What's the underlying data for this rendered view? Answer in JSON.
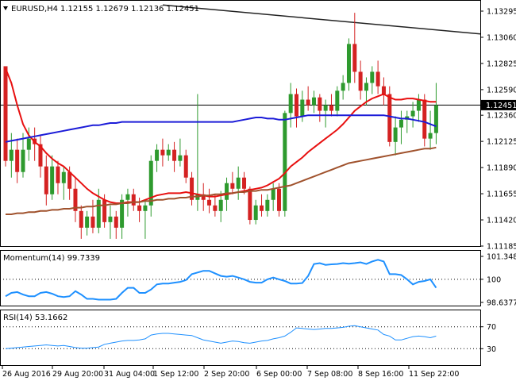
{
  "header": {
    "symbol": "EURUSD,H4",
    "ohlc": "1.12155 1.12679 1.12136 1.12451"
  },
  "colors": {
    "bull": "#2e9a2e",
    "bear": "#d42222",
    "sma_fast": "#e81010",
    "sma_mid": "#1c1cd8",
    "sma_slow": "#a0522d",
    "trendline": "#222222",
    "indicator": "#1e90ff",
    "price_line": "#000000",
    "grid": "#000000"
  },
  "chart_data": [
    {
      "type": "candlestick",
      "title": "EURUSD,H4",
      "ohlc_label": "1.12155 1.12679 1.12136 1.12451",
      "y_ticks": [
        "1.13295",
        "1.13060",
        "1.12825",
        "1.12590",
        "1.12360",
        "1.12125",
        "1.11890",
        "1.11655",
        "1.11420",
        "1.11185"
      ],
      "current_price_label": "1.12451",
      "current_price": 1.12451,
      "ylim": [
        1.11185,
        1.13295
      ],
      "x_ticks": [
        "26 Aug 2016",
        "29 Aug 20:00",
        "31 Aug 04:00",
        "1 Sep 12:00",
        "2 Sep 20:00",
        "6 Sep 00:00",
        "7 Sep 08:00",
        "8 Sep 16:00",
        "11 Sep 22:00"
      ],
      "candles": [
        [
          1.128,
          1.128,
          1.119,
          1.1195
        ],
        [
          1.1195,
          1.122,
          1.118,
          1.1205
        ],
        [
          1.1205,
          1.1215,
          1.1175,
          1.1185
        ],
        [
          1.1185,
          1.122,
          1.118,
          1.1205
        ],
        [
          1.1205,
          1.1225,
          1.1195,
          1.1215
        ],
        [
          1.1215,
          1.1225,
          1.1195,
          1.121
        ],
        [
          1.121,
          1.1218,
          1.118,
          1.119
        ],
        [
          1.119,
          1.12,
          1.1155,
          1.1165
        ],
        [
          1.1165,
          1.12,
          1.116,
          1.119
        ],
        [
          1.119,
          1.1195,
          1.1165,
          1.1175
        ],
        [
          1.1175,
          1.119,
          1.116,
          1.1185
        ],
        [
          1.1185,
          1.119,
          1.116,
          1.117
        ],
        [
          1.117,
          1.118,
          1.114,
          1.115
        ],
        [
          1.115,
          1.1155,
          1.1125,
          1.1135
        ],
        [
          1.1135,
          1.115,
          1.1128,
          1.1145
        ],
        [
          1.1145,
          1.116,
          1.113,
          1.1135
        ],
        [
          1.1135,
          1.117,
          1.113,
          1.116
        ],
        [
          1.116,
          1.1165,
          1.1135,
          1.114
        ],
        [
          1.114,
          1.1155,
          1.1125,
          1.1145
        ],
        [
          1.1145,
          1.115,
          1.1125,
          1.1135
        ],
        [
          1.1135,
          1.1165,
          1.1125,
          1.116
        ],
        [
          1.116,
          1.117,
          1.1145,
          1.1165
        ],
        [
          1.1165,
          1.117,
          1.115,
          1.1155
        ],
        [
          1.1155,
          1.1162,
          1.114,
          1.115
        ],
        [
          1.115,
          1.116,
          1.1125,
          1.1155
        ],
        [
          1.1155,
          1.12,
          1.1145,
          1.1195
        ],
        [
          1.1195,
          1.121,
          1.1185,
          1.1205
        ],
        [
          1.1205,
          1.1215,
          1.119,
          1.12
        ],
        [
          1.12,
          1.121,
          1.1195,
          1.1205
        ],
        [
          1.1205,
          1.1212,
          1.1185,
          1.1195
        ],
        [
          1.1195,
          1.1215,
          1.119,
          1.12
        ],
        [
          1.12,
          1.1205,
          1.1175,
          1.118
        ],
        [
          1.118,
          1.1185,
          1.1155,
          1.116
        ],
        [
          1.116,
          1.1255,
          1.115,
          1.1165
        ],
        [
          1.1165,
          1.1175,
          1.115,
          1.116
        ],
        [
          1.116,
          1.117,
          1.1148,
          1.1155
        ],
        [
          1.1155,
          1.1165,
          1.1145,
          1.115
        ],
        [
          1.115,
          1.1168,
          1.114,
          1.116
        ],
        [
          1.116,
          1.118,
          1.115,
          1.1175
        ],
        [
          1.1175,
          1.1185,
          1.1165,
          1.117
        ],
        [
          1.117,
          1.119,
          1.116,
          1.118
        ],
        [
          1.118,
          1.1185,
          1.1165,
          1.117
        ],
        [
          1.117,
          1.1172,
          1.1138,
          1.1142
        ],
        [
          1.1142,
          1.116,
          1.1138,
          1.1155
        ],
        [
          1.1155,
          1.1165,
          1.1145,
          1.115
        ],
        [
          1.115,
          1.1165,
          1.1145,
          1.116
        ],
        [
          1.116,
          1.1175,
          1.115,
          1.117
        ],
        [
          1.117,
          1.1175,
          1.1145,
          1.115
        ],
        [
          1.115,
          1.124,
          1.1145,
          1.1238
        ],
        [
          1.1238,
          1.1265,
          1.1225,
          1.1255
        ],
        [
          1.1255,
          1.126,
          1.1225,
          1.1235
        ],
        [
          1.1235,
          1.1258,
          1.123,
          1.125
        ],
        [
          1.125,
          1.1262,
          1.124,
          1.1245
        ],
        [
          1.1245,
          1.1258,
          1.1238,
          1.1252
        ],
        [
          1.1252,
          1.1255,
          1.123,
          1.124
        ],
        [
          1.124,
          1.125,
          1.1225,
          1.1245
        ],
        [
          1.1245,
          1.1255,
          1.1235,
          1.124
        ],
        [
          1.124,
          1.1262,
          1.1235,
          1.1258
        ],
        [
          1.1258,
          1.1272,
          1.125,
          1.1265
        ],
        [
          1.1265,
          1.1305,
          1.1258,
          1.13
        ],
        [
          1.13,
          1.1328,
          1.1265,
          1.1275
        ],
        [
          1.1275,
          1.1285,
          1.125,
          1.1258
        ],
        [
          1.1258,
          1.127,
          1.1245,
          1.1265
        ],
        [
          1.1265,
          1.128,
          1.1255,
          1.1275
        ],
        [
          1.1275,
          1.1285,
          1.1255,
          1.1262
        ],
        [
          1.1262,
          1.127,
          1.1245,
          1.1255
        ],
        [
          1.1255,
          1.1262,
          1.1208,
          1.1212
        ],
        [
          1.1212,
          1.1235,
          1.12,
          1.1225
        ],
        [
          1.1225,
          1.124,
          1.121,
          1.1232
        ],
        [
          1.1232,
          1.124,
          1.122,
          1.1235
        ],
        [
          1.1235,
          1.1248,
          1.1225,
          1.124
        ],
        [
          1.124,
          1.1255,
          1.123,
          1.125
        ],
        [
          1.125,
          1.1255,
          1.1208,
          1.1215
        ],
        [
          1.1215,
          1.124,
          1.1205,
          1.122
        ],
        [
          1.122,
          1.1265,
          1.121,
          1.1245
        ]
      ],
      "series": [
        {
          "values": [
            1.1278,
            1.1265,
            1.1245,
            1.1228,
            1.1218,
            1.1212,
            1.1208,
            1.1202,
            1.1197,
            1.1193,
            1.119,
            1.1185,
            1.118,
            1.1175,
            1.117,
            1.1166,
            1.1163,
            1.116,
            1.1158,
            1.1157,
            1.1157,
            1.1158,
            1.1158,
            1.1158,
            1.116,
            1.1162,
            1.1164,
            1.1165,
            1.1166,
            1.1166,
            1.1166,
            1.1167,
            1.1166,
            1.1165,
            1.1164,
            1.1163,
            1.1163,
            1.1164,
            1.1165,
            1.1166,
            1.1167,
            1.1168,
            1.1169,
            1.117,
            1.1171,
            1.1173,
            1.1176,
            1.1179,
            1.1184,
            1.119,
            1.1194,
            1.1198,
            1.1203,
            1.1207,
            1.1211,
            1.1215,
            1.1219,
            1.1223,
            1.1228,
            1.1234,
            1.124,
            1.1244,
            1.1248,
            1.1251,
            1.1253,
            1.1255,
            1.1252,
            1.125,
            1.125,
            1.1251,
            1.1251,
            1.125,
            1.1249,
            1.1248,
            1.1248
          ]
        },
        {
          "values": [
            1.1212,
            1.1213,
            1.1214,
            1.1215,
            1.1216,
            1.1217,
            1.1218,
            1.1219,
            1.122,
            1.1221,
            1.1222,
            1.1223,
            1.1224,
            1.1225,
            1.1226,
            1.1227,
            1.1227,
            1.1228,
            1.1229,
            1.1229,
            1.123,
            1.123,
            1.123,
            1.123,
            1.123,
            1.123,
            1.123,
            1.123,
            1.123,
            1.123,
            1.123,
            1.123,
            1.123,
            1.123,
            1.123,
            1.123,
            1.123,
            1.123,
            1.123,
            1.123,
            1.1231,
            1.1232,
            1.1233,
            1.1234,
            1.1234,
            1.1233,
            1.1233,
            1.1232,
            1.1232,
            1.1233,
            1.1234,
            1.1235,
            1.1236,
            1.1236,
            1.1236,
            1.1236,
            1.1236,
            1.1236,
            1.1236,
            1.1236,
            1.1236,
            1.1236,
            1.1236,
            1.1236,
            1.1236,
            1.1236,
            1.1235,
            1.1234,
            1.1233,
            1.1233,
            1.1232,
            1.1231,
            1.123,
            1.1228,
            1.1226
          ]
        },
        {
          "values": [
            1.1147,
            1.1147,
            1.1148,
            1.1148,
            1.1149,
            1.1149,
            1.115,
            1.115,
            1.1151,
            1.1151,
            1.1152,
            1.1152,
            1.1153,
            1.1153,
            1.1154,
            1.1154,
            1.1155,
            1.1155,
            1.1156,
            1.1156,
            1.1157,
            1.1157,
            1.1158,
            1.1158,
            1.1159,
            1.1159,
            1.116,
            1.116,
            1.1161,
            1.1161,
            1.1162,
            1.1162,
            1.1163,
            1.1163,
            1.1164,
            1.1164,
            1.1165,
            1.1165,
            1.1166,
            1.1166,
            1.1167,
            1.1167,
            1.1168,
            1.1168,
            1.1169,
            1.1169,
            1.117,
            1.1171,
            1.1172,
            1.1173,
            1.1175,
            1.1177,
            1.1179,
            1.1181,
            1.1183,
            1.1185,
            1.1187,
            1.1189,
            1.1191,
            1.1193,
            1.1194,
            1.1195,
            1.1196,
            1.1197,
            1.1198,
            1.1199,
            1.12,
            1.1201,
            1.1202,
            1.1203,
            1.1204,
            1.1205,
            1.1206,
            1.1206,
            1.1207
          ]
        }
      ],
      "trendline": {
        "start": 1.1335,
        "end": 1.1309
      }
    },
    {
      "type": "line",
      "title": "Momentum(14) 99.7339",
      "y_ticks": [
        "101.3487",
        "100",
        "98.6377"
      ],
      "ylim": [
        98.6377,
        101.3487
      ],
      "reference_level": 100,
      "values": [
        99.0,
        99.2,
        99.25,
        99.1,
        99.0,
        99.0,
        99.2,
        99.25,
        99.15,
        99.0,
        98.95,
        99.0,
        99.3,
        99.1,
        98.85,
        98.85,
        98.8,
        98.8,
        98.8,
        98.85,
        99.2,
        99.5,
        99.5,
        99.2,
        99.2,
        99.4,
        99.7,
        99.75,
        99.75,
        99.8,
        99.85,
        99.95,
        100.3,
        100.4,
        100.5,
        100.5,
        100.35,
        100.2,
        100.15,
        100.2,
        100.1,
        100.0,
        99.85,
        99.8,
        99.8,
        100.0,
        100.1,
        100.0,
        99.9,
        99.75,
        99.75,
        99.78,
        100.2,
        100.9,
        100.95,
        100.85,
        100.88,
        100.9,
        100.95,
        100.92,
        100.95,
        101.0,
        100.9,
        101.05,
        101.15,
        101.05,
        100.3,
        100.3,
        100.25,
        100.0,
        99.7,
        99.85,
        99.9,
        100.0,
        99.5
      ]
    },
    {
      "type": "line",
      "title": "RSI(14) 53.1662",
      "y_ticks": [
        "70",
        "30"
      ],
      "ylim": [
        0,
        100
      ],
      "reference_levels": [
        70,
        30
      ],
      "values": [
        30,
        31,
        32,
        33,
        34,
        35,
        36,
        37,
        36,
        35,
        36,
        34,
        32,
        31,
        31,
        32,
        33,
        38,
        40,
        42,
        44,
        45,
        45,
        46,
        48,
        55,
        57,
        58,
        58,
        57,
        56,
        55,
        54,
        50,
        46,
        44,
        42,
        40,
        42,
        44,
        43,
        41,
        40,
        42,
        44,
        45,
        48,
        50,
        53,
        60,
        68,
        67,
        66,
        65,
        66,
        67,
        67,
        68,
        69,
        71,
        72,
        70,
        68,
        66,
        64,
        56,
        53,
        46,
        46,
        49,
        52,
        53,
        52,
        50,
        53
      ]
    }
  ]
}
